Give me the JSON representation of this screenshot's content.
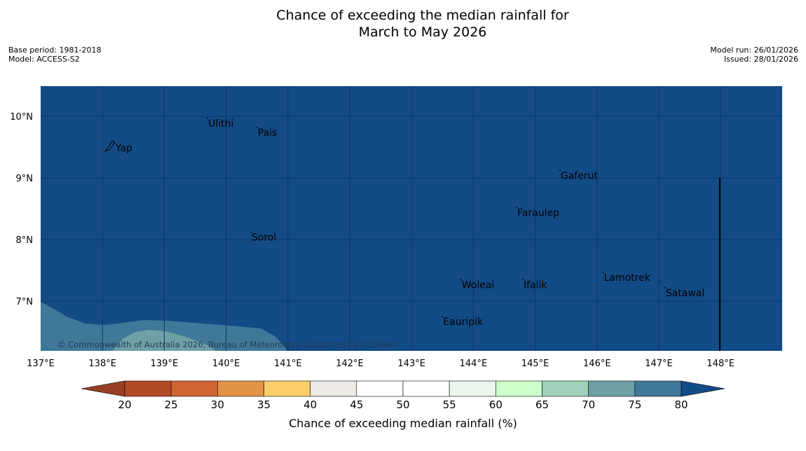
{
  "title": {
    "line1": "Chance of exceeding the median rainfall for",
    "line2": "March to May 2026"
  },
  "meta": {
    "base_period": "Base period: 1981-2018",
    "model": "Model: ACCESS-S2",
    "model_run": "Model run: 26/01/2026",
    "issued": "Issued: 28/01/2026"
  },
  "map": {
    "lon_range": [
      137,
      149
    ],
    "lat_range": [
      6.2,
      10.5
    ],
    "lon_ticks": [
      {
        "lon": 137,
        "label": "137°E"
      },
      {
        "lon": 138,
        "label": "138°E"
      },
      {
        "lon": 139,
        "label": "139°E"
      },
      {
        "lon": 140,
        "label": "140°E"
      },
      {
        "lon": 141,
        "label": "141°E"
      },
      {
        "lon": 142,
        "label": "142°E"
      },
      {
        "lon": 143,
        "label": "143°E"
      },
      {
        "lon": 144,
        "label": "144°E"
      },
      {
        "lon": 145,
        "label": "145°E"
      },
      {
        "lon": 146,
        "label": "146°E"
      },
      {
        "lon": 147,
        "label": "147°E"
      },
      {
        "lon": 148,
        "label": "148°E"
      }
    ],
    "lat_ticks": [
      {
        "lat": 10,
        "label": "10°N"
      },
      {
        "lat": 9,
        "label": "9°N"
      },
      {
        "lat": 8,
        "label": "8°N"
      },
      {
        "lat": 7,
        "label": "7°N"
      }
    ],
    "places": [
      {
        "name": "Yap",
        "lon": 138.2,
        "lat": 9.5
      },
      {
        "name": "Ulithi",
        "lon": 139.7,
        "lat": 9.9
      },
      {
        "name": "Pais",
        "lon": 140.5,
        "lat": 9.75
      },
      {
        "name": "Gaferut",
        "lon": 145.4,
        "lat": 9.05
      },
      {
        "name": "Faraulep",
        "lon": 144.7,
        "lat": 8.45
      },
      {
        "name": "Sorol",
        "lon": 140.4,
        "lat": 8.05
      },
      {
        "name": "Lamotrek",
        "lon": 146.1,
        "lat": 7.4
      },
      {
        "name": "Woleai",
        "lon": 143.8,
        "lat": 7.28
      },
      {
        "name": "Ifalik",
        "lon": 144.8,
        "lat": 7.28
      },
      {
        "name": "Satawal",
        "lon": 147.1,
        "lat": 7.15
      },
      {
        "name": "Eauripik",
        "lon": 143.5,
        "lat": 6.68
      }
    ],
    "ocean_color": "#134b86",
    "band_75_color": "#3f7898",
    "band_70_color": "#6fa0a6",
    "attribution": "© Commonwealth of Australia 2026, Bureau of Meteorology, supported by COSPPac"
  },
  "colorbar": {
    "label": "Chance of exceeding median rainfall (%)",
    "ticks": [
      "20",
      "25",
      "30",
      "35",
      "40",
      "45",
      "50",
      "55",
      "60",
      "65",
      "70",
      "75",
      "80"
    ],
    "under_color": "#973d23",
    "over_color": "#134b86",
    "colors": [
      "#b14a26",
      "#d06433",
      "#e29348",
      "#fece6b",
      "#ede9e4",
      "#ffffff",
      "#ffffff",
      "#eaf6ec",
      "#ccffcc",
      "#9fd0b9",
      "#6fa0a6",
      "#3f7898"
    ]
  }
}
